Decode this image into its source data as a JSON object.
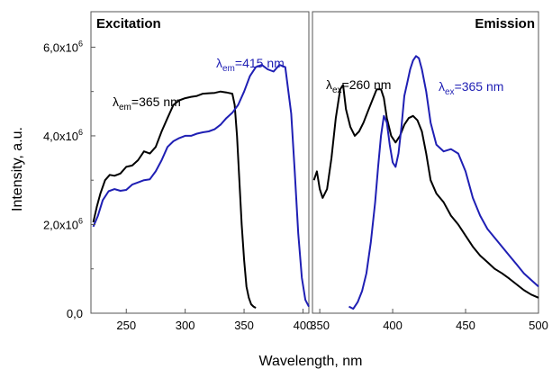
{
  "chart_data": {
    "type": "line",
    "ylabel": "Intensity, a.u.",
    "xlabel": "Wavelength, nm",
    "ylim": [
      0,
      6800000
    ],
    "ytick_labels": [
      "0,0",
      "2,0x10",
      "4,0x10",
      "6,0x10"
    ],
    "ytick_exponent": "6",
    "colors": {
      "black": "#000000",
      "blue": "#1f1fb4"
    },
    "panels": [
      {
        "title": "Excitation",
        "xlim": [
          220,
          405
        ],
        "xticks": [
          250,
          300,
          350,
          400
        ],
        "series": [
          {
            "label_main": "λ",
            "label_sub": "em",
            "label_rest": "=365 nm",
            "color": "#000000",
            "x": [
              222,
              225,
              228,
              232,
              236,
              240,
              245,
              250,
              255,
              260,
              265,
              270,
              275,
              280,
              285,
              290,
              295,
              300,
              305,
              310,
              315,
              320,
              325,
              330,
              335,
              340,
              342,
              344,
              346,
              348,
              350,
              352,
              354,
              356,
              358,
              360
            ],
            "y": [
              2050000,
              2400000,
              2700000,
              3000000,
              3120000,
              3100000,
              3150000,
              3300000,
              3330000,
              3450000,
              3650000,
              3600000,
              3750000,
              4100000,
              4400000,
              4700000,
              4800000,
              4850000,
              4880000,
              4900000,
              4950000,
              4960000,
              4970000,
              5000000,
              4980000,
              4950000,
              4700000,
              4000000,
              3000000,
              2000000,
              1200000,
              600000,
              350000,
              200000,
              150000,
              120000
            ]
          },
          {
            "label_main": "λ",
            "label_sub": "em",
            "label_rest": "=415 nm",
            "color": "#1f1fb4",
            "x": [
              222,
              226,
              230,
              235,
              240,
              245,
              250,
              255,
              260,
              265,
              270,
              275,
              280,
              285,
              290,
              295,
              300,
              305,
              310,
              315,
              320,
              325,
              330,
              335,
              340,
              345,
              350,
              355,
              360,
              365,
              370,
              375,
              380,
              385,
              390,
              393,
              396,
              399,
              402,
              405
            ],
            "y": [
              1950000,
              2200000,
              2550000,
              2750000,
              2800000,
              2760000,
              2780000,
              2900000,
              2950000,
              3000000,
              3020000,
              3200000,
              3450000,
              3750000,
              3880000,
              3950000,
              4000000,
              4000000,
              4050000,
              4080000,
              4100000,
              4150000,
              4250000,
              4400000,
              4520000,
              4700000,
              5000000,
              5350000,
              5550000,
              5600000,
              5500000,
              5450000,
              5600000,
              5550000,
              4500000,
              3200000,
              1800000,
              800000,
              300000,
              150000
            ]
          }
        ]
      },
      {
        "title": "Emission",
        "xlim": [
          345,
          500
        ],
        "xticks": [
          350,
          400,
          450,
          500
        ],
        "series": [
          {
            "label_main": "λ",
            "label_sub": "ex",
            "label_rest": "=260 nm",
            "color": "#000000",
            "x": [
              346,
              348,
              350,
              352,
              355,
              358,
              361,
              364,
              366,
              368,
              371,
              374,
              377,
              380,
              383,
              386,
              389,
              392,
              394,
              396,
              399,
              402,
              405,
              408,
              411,
              414,
              417,
              420,
              423,
              426,
              430,
              435,
              440,
              445,
              450,
              455,
              460,
              465,
              470,
              475,
              480,
              485,
              490,
              495,
              500
            ],
            "y": [
              3000000,
              3200000,
              2800000,
              2600000,
              2800000,
              3500000,
              4400000,
              5050000,
              5150000,
              4600000,
              4200000,
              4000000,
              4100000,
              4300000,
              4550000,
              4800000,
              5050000,
              5050000,
              4850000,
              4400000,
              4000000,
              3850000,
              4000000,
              4250000,
              4400000,
              4450000,
              4350000,
              4100000,
              3600000,
              3000000,
              2700000,
              2500000,
              2200000,
              2000000,
              1750000,
              1500000,
              1300000,
              1150000,
              1000000,
              900000,
              780000,
              650000,
              520000,
              420000,
              350000
            ]
          },
          {
            "label_main": "λ",
            "label_sub": "ex",
            "label_rest": "=365 nm",
            "color": "#1f1fb4",
            "x": [
              370,
              373,
              376,
              379,
              382,
              385,
              388,
              390,
              392,
              394,
              396,
              398,
              400,
              402,
              404,
              406,
              408,
              410,
              412,
              414,
              416,
              418,
              420,
              423,
              426,
              430,
              435,
              440,
              445,
              450,
              455,
              460,
              465,
              470,
              475,
              480,
              485,
              490,
              495,
              500
            ],
            "y": [
              150000,
              100000,
              250000,
              500000,
              900000,
              1600000,
              2500000,
              3300000,
              4000000,
              4450000,
              4300000,
              3800000,
              3400000,
              3300000,
              3600000,
              4200000,
              4900000,
              5200000,
              5500000,
              5700000,
              5800000,
              5750000,
              5500000,
              5000000,
              4300000,
              3800000,
              3650000,
              3700000,
              3600000,
              3200000,
              2600000,
              2200000,
              1900000,
              1700000,
              1500000,
              1300000,
              1100000,
              900000,
              750000,
              600000
            ]
          }
        ]
      }
    ]
  }
}
